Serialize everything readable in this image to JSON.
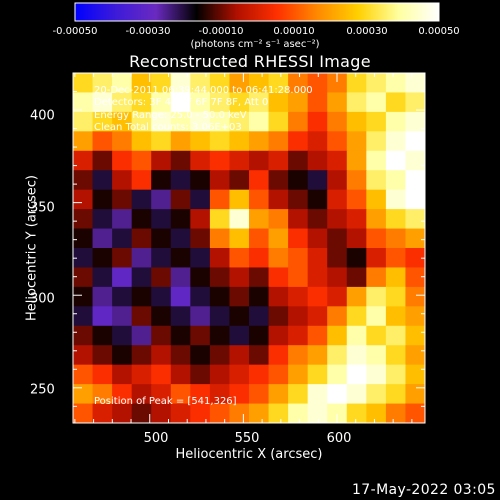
{
  "colorbar": {
    "ticks": [
      "-0.00050",
      "-0.00030",
      "-0.00010",
      "0.00010",
      "0.00030",
      "0.00050"
    ],
    "units": "(photons cm⁻² s⁻¹ asec⁻²)",
    "range": [
      -0.0005,
      0.0005
    ],
    "colors": [
      "#0000ff",
      "#3c1bd9",
      "#6a2ac0",
      "#000000",
      "#b01000",
      "#ff3000",
      "#ff8a00",
      "#ffd000",
      "#ffffa0",
      "#ffffff"
    ]
  },
  "title": "Reconstructed RHESSI Image",
  "info_lines": [
    "20-Dec-2011 06:39:44.000 to 06:41:28.000",
    "Detectors: 3F 4F 5F 6F 7F 8F, Att 0",
    "Energy Range: 25.0 - 50.0 keV",
    "Clean     Total counts: 3.06E+03"
  ],
  "peak_label": "Position of Peak = [541,326]",
  "footer_date": "17-May-2022 03:05",
  "chart_data": {
    "type": "heatmap",
    "title": "Reconstructed RHESSI Image",
    "xlabel": "Heliocentric X (arcsec)",
    "ylabel": "Heliocentric Y (arcsec)",
    "xlim": [
      459,
      647
    ],
    "ylim": [
      231,
      420
    ],
    "x_ticks": [
      "500",
      "550",
      "600"
    ],
    "y_ticks": [
      "250",
      "300",
      "350",
      "400"
    ],
    "x_tick_values": [
      500,
      550,
      600
    ],
    "y_tick_values": [
      250,
      300,
      350,
      400
    ],
    "value_range": [
      -0.0005,
      0.0005
    ],
    "peak": [
      541,
      326
    ],
    "grid_rows": 18,
    "grid_cols": 18,
    "values": [
      [
        0.0003,
        0.00035,
        0.0004,
        0.00025,
        0.0003,
        0.00045,
        0.00035,
        0.0003,
        0.0002,
        0.00025,
        0.0003,
        0.00015,
        0.0001,
        0.00015,
        0.0003,
        0.00035,
        0.0004,
        0.00045
      ],
      [
        0.0004,
        0.00045,
        0.00035,
        0.0003,
        0.0004,
        0.0005,
        0.0004,
        0.00035,
        0.0003,
        0.00035,
        0.00025,
        0.0002,
        0.0001,
        0.0002,
        0.00035,
        0.0004,
        0.0003,
        0.00035
      ],
      [
        0.00035,
        0.0003,
        0.00025,
        0.00035,
        0.00045,
        0.0004,
        0.00045,
        0.0004,
        0.00035,
        0.0004,
        0.0003,
        0.00015,
        5e-05,
        0.00015,
        0.00025,
        0.0003,
        0.0004,
        0.00045
      ],
      [
        0.0002,
        0.0001,
        0.00015,
        0.00025,
        0.0003,
        0.0002,
        0.00025,
        0.0003,
        0.00025,
        0.0002,
        0.00015,
        5e-05,
        0.0,
        0.0001,
        0.0002,
        0.00035,
        0.00045,
        0.0005
      ],
      [
        0.0,
        -0.0001,
        5e-05,
        0.0001,
        -5e-05,
        -0.0001,
        0.0,
        5e-05,
        0.0,
        -5e-05,
        0.0,
        -0.0001,
        -5e-05,
        0.0,
        0.0002,
        0.0004,
        0.0005,
        0.00045
      ],
      [
        -0.0001,
        -0.0002,
        -5e-05,
        5e-05,
        -0.00015,
        -0.0002,
        -0.00015,
        -5e-05,
        -0.0001,
        5e-05,
        -0.0001,
        -0.00015,
        -0.0002,
        -5e-05,
        0.00015,
        0.00035,
        0.0004,
        0.0005
      ],
      [
        -5e-05,
        -0.00015,
        -0.0001,
        -0.0002,
        -0.00025,
        -0.0001,
        -0.0002,
        0.0001,
        0.00025,
        0.0001,
        -5e-05,
        -0.0001,
        -0.00015,
        0.0,
        0.0001,
        0.00025,
        0.00045,
        0.0005
      ],
      [
        -0.0001,
        -0.0002,
        -0.00025,
        -0.00015,
        -0.0002,
        -0.00015,
        -5e-05,
        0.0003,
        0.00045,
        0.0002,
        0.00015,
        -5e-05,
        -0.0001,
        -5e-05,
        0.0,
        0.0002,
        0.0003,
        0.00035
      ],
      [
        -0.00015,
        -0.00025,
        -0.0002,
        -0.0001,
        -0.00015,
        -0.0002,
        -0.0001,
        0.00015,
        0.00025,
        0.0001,
        0.0002,
        5e-05,
        -5e-05,
        -0.0001,
        -5e-05,
        0.0001,
        0.00015,
        0.0002
      ],
      [
        -0.0002,
        -0.00015,
        -0.0001,
        -0.00025,
        -0.0002,
        -0.00015,
        -0.0002,
        -5e-05,
        0.0001,
        5e-05,
        0.00015,
        0.0001,
        0.0,
        -0.0001,
        -0.00015,
        0.0,
        0.0001,
        5e-05
      ],
      [
        -0.0001,
        -0.0002,
        -0.0003,
        -0.0002,
        -0.0001,
        -0.00025,
        -0.00015,
        -0.0001,
        -5e-05,
        -0.0001,
        5e-05,
        0.0001,
        0.0,
        -5e-05,
        -0.0001,
        0.00015,
        0.00025,
        0.0001
      ],
      [
        -0.00015,
        -0.00025,
        -0.0002,
        -0.00015,
        -0.0002,
        -0.0003,
        -0.0002,
        -0.00015,
        -0.0001,
        -0.00015,
        -5e-05,
        0.0,
        5e-05,
        0.0,
        0.0002,
        0.00035,
        0.0003,
        0.00015
      ],
      [
        -0.0002,
        -0.0003,
        -0.00025,
        -0.0001,
        -0.00015,
        -0.0002,
        -0.00025,
        -0.0002,
        -0.00015,
        -0.0002,
        -0.0001,
        -5e-05,
        0.0,
        0.00015,
        0.0003,
        0.0004,
        0.00025,
        0.0002
      ],
      [
        -0.0001,
        -0.00015,
        -0.0002,
        -0.00025,
        -0.0001,
        -0.00015,
        -0.0001,
        -0.00015,
        -0.0002,
        -0.00015,
        -5e-05,
        0.0,
        0.0001,
        0.00025,
        0.0004,
        0.0003,
        0.00035,
        0.00025
      ],
      [
        -5e-05,
        -0.0001,
        -0.00015,
        -0.0001,
        -5e-05,
        -0.0001,
        -0.00015,
        -0.0001,
        -5e-05,
        -0.0001,
        5e-05,
        0.00015,
        0.0002,
        0.00035,
        0.00045,
        0.0004,
        0.0003,
        0.0002
      ],
      [
        0.0001,
        5e-05,
        -5e-05,
        0.0,
        5e-05,
        -5e-05,
        -0.0001,
        -5e-05,
        0.0,
        5e-05,
        0.0001,
        0.0002,
        0.0003,
        0.0004,
        0.0005,
        0.00045,
        0.00035,
        0.00025
      ],
      [
        0.0002,
        0.00015,
        5e-05,
        -5e-05,
        0.0,
        0.0001,
        5e-05,
        0.0,
        5e-05,
        0.0001,
        0.0002,
        0.0003,
        0.00045,
        0.0005,
        0.00045,
        0.00035,
        0.0003,
        0.0002
      ],
      [
        0.0001,
        0.0,
        -5e-05,
        -0.0001,
        -5e-05,
        0.0,
        5e-05,
        0.0001,
        0.00015,
        0.0002,
        0.0003,
        0.0004,
        0.00045,
        0.0004,
        0.0003,
        0.00025,
        0.00015,
        0.0001
      ]
    ]
  }
}
